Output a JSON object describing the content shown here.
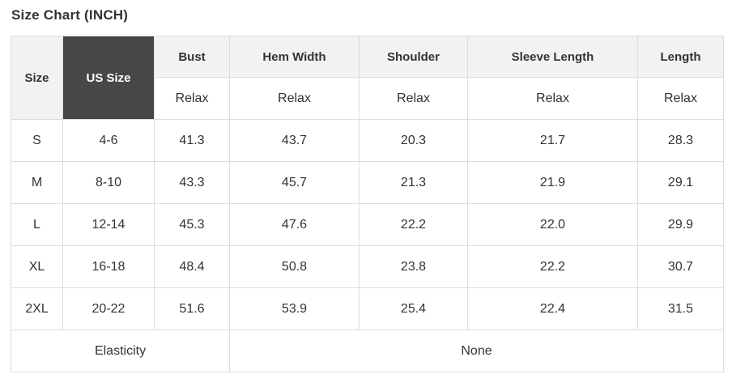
{
  "page": {
    "title": "Size Chart (INCH)"
  },
  "colors": {
    "header_bg": "#f2f2f2",
    "dark_cell_bg": "#474747",
    "dark_cell_text": "#ffffff",
    "border": "#dddddd",
    "text": "#333333"
  },
  "table": {
    "columns": [
      {
        "key": "size",
        "label": "Size",
        "sub": null
      },
      {
        "key": "us_size",
        "label": "US Size",
        "sub": null
      },
      {
        "key": "bust",
        "label": "Bust",
        "sub": "Relax"
      },
      {
        "key": "hem_width",
        "label": "Hem Width",
        "sub": "Relax"
      },
      {
        "key": "shoulder",
        "label": "Shoulder",
        "sub": "Relax"
      },
      {
        "key": "sleeve_length",
        "label": "Sleeve Length",
        "sub": "Relax"
      },
      {
        "key": "length",
        "label": "Length",
        "sub": "Relax"
      }
    ],
    "rows": [
      {
        "size": "S",
        "us_size": "4-6",
        "bust": "41.3",
        "hem_width": "43.7",
        "shoulder": "20.3",
        "sleeve_length": "21.7",
        "length": "28.3"
      },
      {
        "size": "M",
        "us_size": "8-10",
        "bust": "43.3",
        "hem_width": "45.7",
        "shoulder": "21.3",
        "sleeve_length": "21.9",
        "length": "29.1"
      },
      {
        "size": "L",
        "us_size": "12-14",
        "bust": "45.3",
        "hem_width": "47.6",
        "shoulder": "22.2",
        "sleeve_length": "22.0",
        "length": "29.9"
      },
      {
        "size": "XL",
        "us_size": "16-18",
        "bust": "48.4",
        "hem_width": "50.8",
        "shoulder": "23.8",
        "sleeve_length": "22.2",
        "length": "30.7"
      },
      {
        "size": "2XL",
        "us_size": "20-22",
        "bust": "51.6",
        "hem_width": "53.9",
        "shoulder": "25.4",
        "sleeve_length": "22.4",
        "length": "31.5"
      }
    ],
    "footer": {
      "label": "Elasticity",
      "value": "None"
    }
  },
  "chart_data": {
    "type": "table",
    "title": "Size Chart (INCH)",
    "unit": "INCH",
    "fit_type": "Relax",
    "columns": [
      "Size",
      "US Size",
      "Bust (Relax)",
      "Hem Width (Relax)",
      "Shoulder (Relax)",
      "Sleeve Length (Relax)",
      "Length (Relax)"
    ],
    "rows": [
      [
        "S",
        "4-6",
        41.3,
        43.7,
        20.3,
        21.7,
        28.3
      ],
      [
        "M",
        "8-10",
        43.3,
        45.7,
        21.3,
        21.9,
        29.1
      ],
      [
        "L",
        "12-14",
        45.3,
        47.6,
        22.2,
        22.0,
        29.9
      ],
      [
        "XL",
        "16-18",
        48.4,
        50.8,
        23.8,
        22.2,
        30.7
      ],
      [
        "2XL",
        "20-22",
        51.6,
        53.9,
        25.4,
        22.4,
        31.5
      ]
    ],
    "footer": {
      "Elasticity": "None"
    }
  }
}
